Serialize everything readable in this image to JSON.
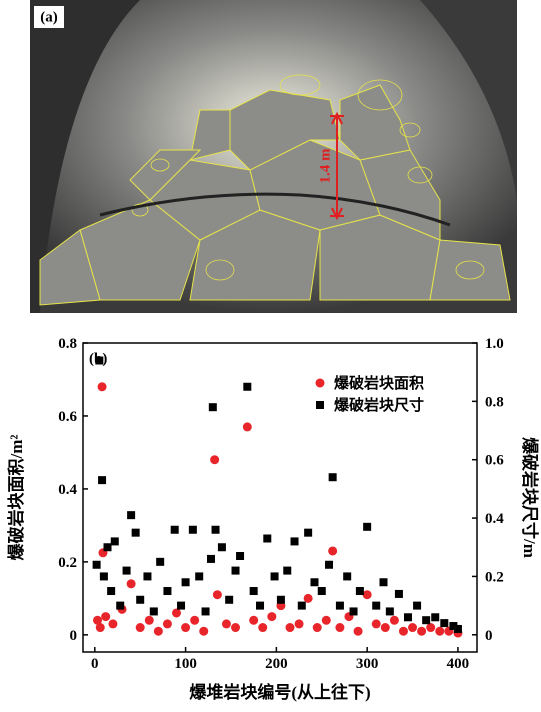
{
  "photo": {
    "label": "(a)",
    "scale_label": "1.4 m"
  },
  "chart_data": {
    "type": "scatter",
    "panel_label": "(b)",
    "xlabel": "爆堆岩块编号(从上往下)",
    "ylabel": "爆破岩块面积/m²",
    "y2label": "爆破岩块尺寸/m",
    "xlim": [
      -13,
      421
    ],
    "xticks": [
      0,
      100,
      200,
      300,
      400
    ],
    "ylim": [
      -0.047,
      0.8
    ],
    "yticks": [
      0,
      0.2,
      0.4,
      0.6,
      0.8
    ],
    "y2lim": [
      -0.059,
      1.0
    ],
    "y2ticks": [
      0,
      0.2,
      0.4,
      0.6,
      0.8,
      {
        "value": 1,
        "label": "1.0"
      }
    ],
    "legend": "upper right",
    "series": [
      {
        "name": "爆破岩块面积",
        "color": "#e8252a",
        "marker": "circle",
        "x": [
          3,
          6,
          8,
          9,
          12,
          20,
          30,
          40,
          50,
          60,
          70,
          80,
          90,
          100,
          110,
          120,
          132,
          135,
          145,
          155,
          168,
          175,
          185,
          195,
          205,
          215,
          225,
          235,
          245,
          255,
          262,
          270,
          280,
          290,
          300,
          310,
          320,
          330,
          340,
          350,
          360,
          370,
          380,
          390,
          400
        ],
        "values": [
          0.04,
          0.02,
          0.68,
          0.225,
          0.05,
          0.03,
          0.07,
          0.14,
          0.02,
          0.04,
          0.01,
          0.03,
          0.06,
          0.02,
          0.04,
          0.01,
          0.48,
          0.11,
          0.03,
          0.02,
          0.57,
          0.04,
          0.02,
          0.05,
          0.08,
          0.02,
          0.03,
          0.1,
          0.02,
          0.04,
          0.23,
          0.02,
          0.05,
          0.01,
          0.11,
          0.03,
          0.02,
          0.04,
          0.01,
          0.02,
          0.01,
          0.02,
          0.01,
          0.01,
          0.005
        ]
      },
      {
        "name": "爆破岩块尺寸",
        "color": "#000000",
        "marker": "square",
        "axis": "y2",
        "x": [
          2,
          5,
          8,
          10,
          14,
          18,
          22,
          28,
          35,
          40,
          45,
          50,
          58,
          65,
          72,
          80,
          88,
          95,
          100,
          108,
          115,
          122,
          128,
          130,
          133,
          140,
          148,
          155,
          160,
          168,
          175,
          182,
          190,
          198,
          205,
          212,
          220,
          228,
          235,
          242,
          250,
          258,
          262,
          270,
          278,
          285,
          292,
          300,
          310,
          318,
          325,
          335,
          345,
          355,
          365,
          375,
          385,
          395,
          400
        ],
        "values": [
          0.24,
          0.94,
          0.53,
          0.2,
          0.3,
          0.15,
          0.32,
          0.1,
          0.22,
          0.41,
          0.35,
          0.12,
          0.2,
          0.08,
          0.25,
          0.15,
          0.36,
          0.1,
          0.18,
          0.36,
          0.2,
          0.08,
          0.26,
          0.78,
          0.36,
          0.3,
          0.12,
          0.22,
          0.27,
          0.85,
          0.15,
          0.1,
          0.33,
          0.2,
          0.12,
          0.22,
          0.32,
          0.1,
          0.35,
          0.18,
          0.15,
          0.24,
          0.54,
          0.1,
          0.2,
          0.08,
          0.15,
          0.37,
          0.1,
          0.18,
          0.08,
          0.14,
          0.06,
          0.1,
          0.05,
          0.06,
          0.04,
          0.03,
          0.02
        ]
      }
    ]
  }
}
